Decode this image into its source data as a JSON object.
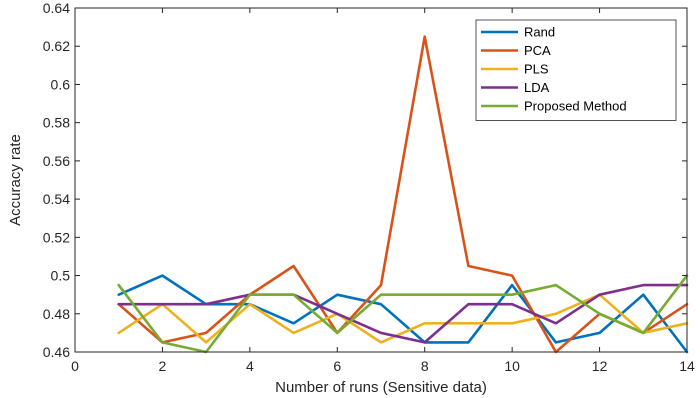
{
  "chart_data": {
    "type": "line",
    "title": "",
    "xlabel": "Number of runs (Sensitive data)",
    "ylabel": "Accuracy rate",
    "xlim": [
      0,
      14
    ],
    "ylim": [
      0.46,
      0.64
    ],
    "x_ticks": [
      "0",
      "2",
      "4",
      "6",
      "8",
      "10",
      "12",
      "14"
    ],
    "y_ticks": [
      "0.46",
      "0.48",
      "0.5",
      "0.52",
      "0.54",
      "0.56",
      "0.58",
      "0.6",
      "0.62",
      "0.64"
    ],
    "grid": false,
    "legend_position": "top-right",
    "x": [
      1,
      2,
      3,
      4,
      5,
      6,
      7,
      8,
      9,
      10,
      11,
      12,
      13,
      14
    ],
    "series": [
      {
        "name": "Rand",
        "color": "#0072BD",
        "values": [
          0.49,
          0.5,
          0.485,
          0.485,
          0.475,
          0.49,
          0.485,
          0.465,
          0.465,
          0.495,
          0.465,
          0.47,
          0.49,
          0.46
        ]
      },
      {
        "name": "PCA",
        "color": "#D95319",
        "values": [
          0.485,
          0.465,
          0.47,
          0.49,
          0.505,
          0.47,
          0.495,
          0.625,
          0.505,
          0.5,
          0.46,
          0.48,
          0.47,
          0.485
        ]
      },
      {
        "name": "PLS",
        "color": "#EDB120",
        "values": [
          0.47,
          0.485,
          0.465,
          0.485,
          0.47,
          0.48,
          0.465,
          0.475,
          0.475,
          0.475,
          0.48,
          0.49,
          0.47,
          0.475
        ]
      },
      {
        "name": "LDA",
        "color": "#7E2F8E",
        "values": [
          0.485,
          0.485,
          0.485,
          0.49,
          0.49,
          0.48,
          0.47,
          0.465,
          0.485,
          0.485,
          0.475,
          0.49,
          0.495,
          0.495
        ]
      },
      {
        "name": "Proposed Method",
        "color": "#77AC30",
        "values": [
          0.495,
          0.465,
          0.46,
          0.49,
          0.49,
          0.47,
          0.49,
          0.49,
          0.49,
          0.49,
          0.495,
          0.48,
          0.47,
          0.5
        ]
      }
    ]
  }
}
